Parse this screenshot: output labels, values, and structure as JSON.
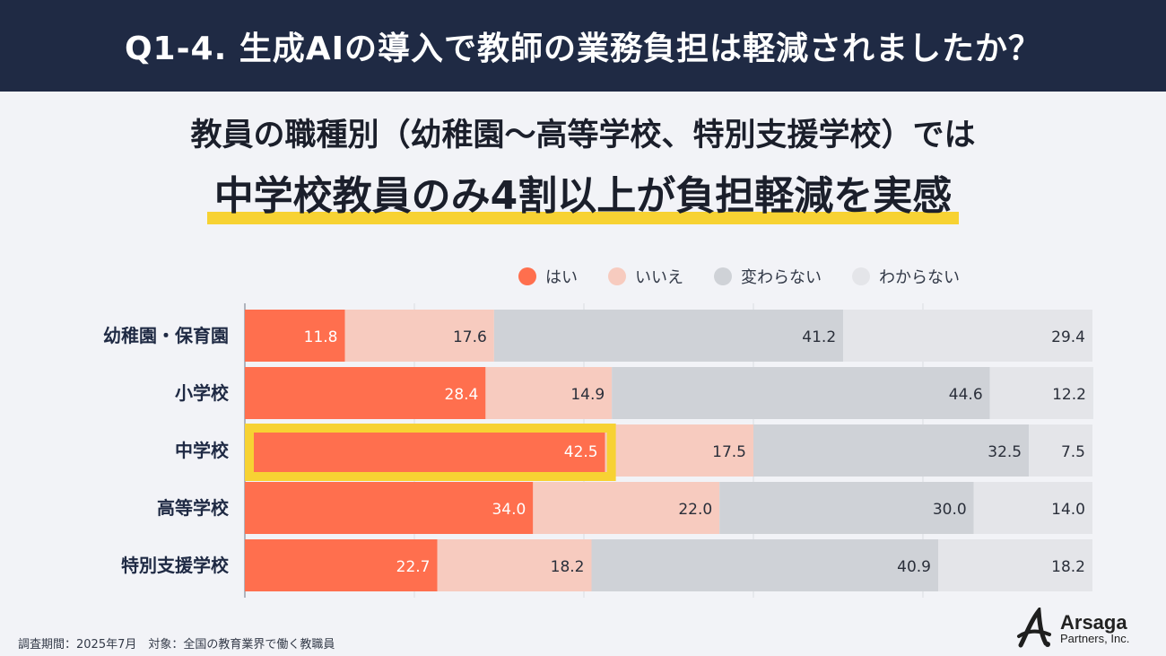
{
  "header": {
    "title": "Q1-4. 生成AIの導入で教師の業務負担は軽減されましたか？"
  },
  "subtitle": "教員の職種別（幼稚園〜高等学校、特別支援学校）では",
  "headline": "中学校教員のみ4割以上が負担軽減を実感",
  "legend": [
    {
      "label": "はい",
      "color": "#ff6f4e"
    },
    {
      "label": "いいえ",
      "color": "#f7cbbf"
    },
    {
      "label": "変わらない",
      "color": "#cfd2d7"
    },
    {
      "label": "わからない",
      "color": "#e4e5e9"
    }
  ],
  "chart_data": {
    "type": "bar",
    "orientation": "horizontal",
    "stacked": true,
    "categories": [
      "幼稚園・保育園",
      "小学校",
      "中学校",
      "高等学校",
      "特別支援学校"
    ],
    "series": [
      {
        "name": "はい",
        "color": "#ff6f4e",
        "values": [
          "11.8",
          "28.4",
          "42.5",
          "34.0",
          "22.7"
        ]
      },
      {
        "name": "いいえ",
        "color": "#f7cbbf",
        "values": [
          "17.6",
          "14.9",
          "17.5",
          "22.0",
          "18.2"
        ]
      },
      {
        "name": "変わらない",
        "color": "#cfd2d7",
        "values": [
          "41.2",
          "44.6",
          "32.5",
          "30.0",
          "40.9"
        ]
      },
      {
        "name": "わからない",
        "color": "#e4e5e9",
        "values": [
          "29.4",
          "12.2",
          "7.5",
          "14.0",
          "18.2"
        ]
      }
    ],
    "xlim": [
      0,
      100
    ],
    "grid": true,
    "highlight": {
      "category": "中学校",
      "series": "はい",
      "color": "#f7d233"
    }
  },
  "footer": {
    "note": "調査期間：2025年7月　対象：全国の教育業界で働く教職員"
  },
  "logo": {
    "name": "Arsaga",
    "sub": "Partners, Inc."
  }
}
